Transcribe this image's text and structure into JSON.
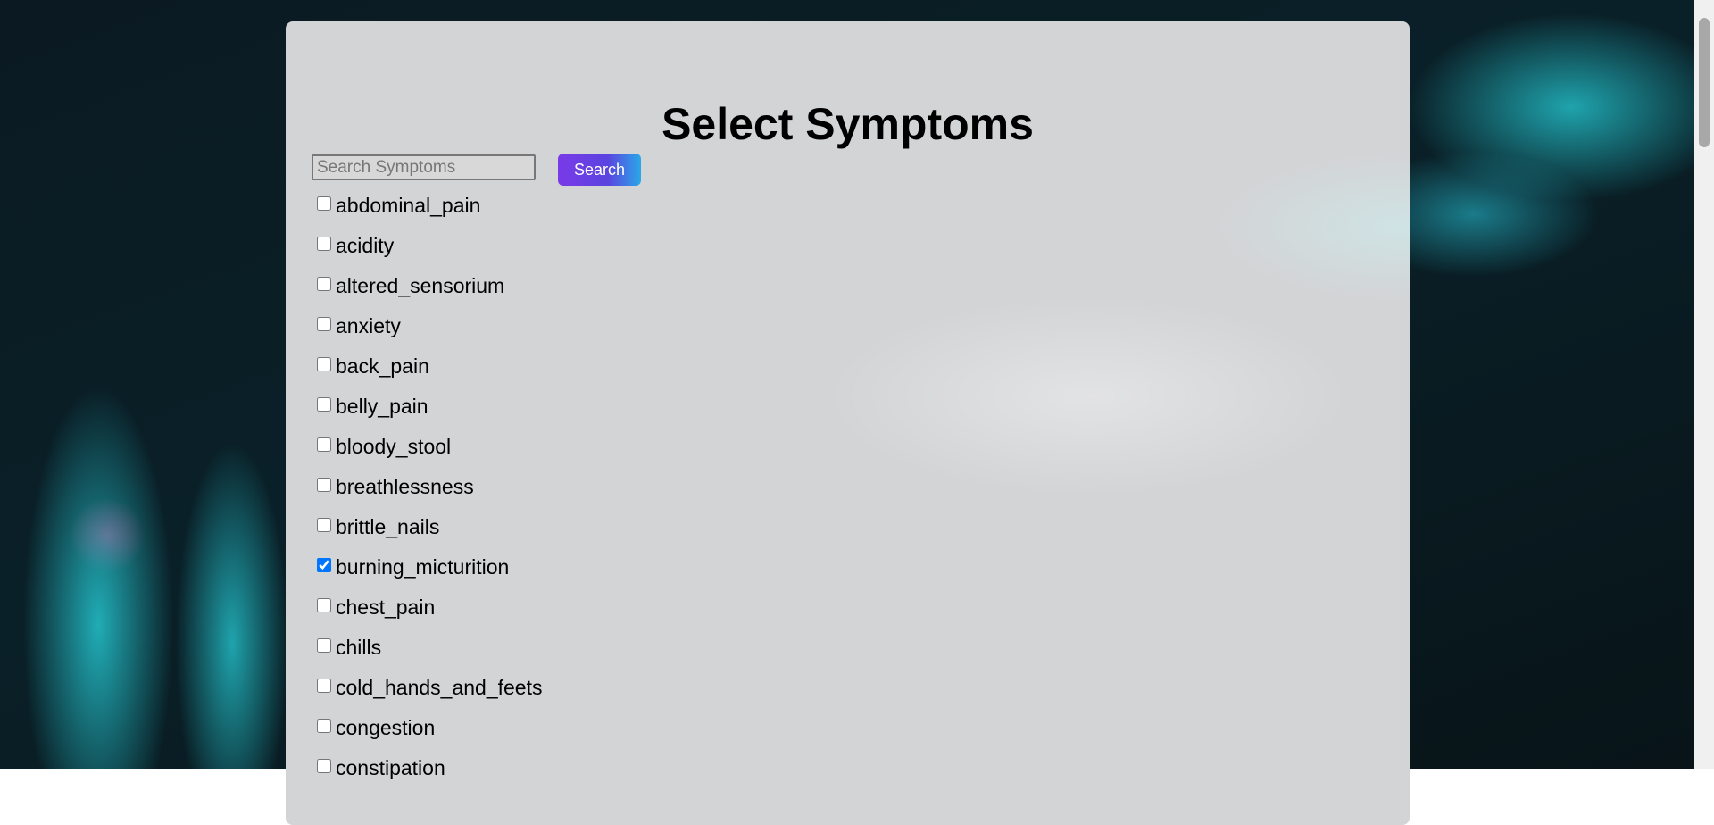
{
  "header": {
    "title": "Select Symptoms"
  },
  "search": {
    "placeholder": "Search Symptoms",
    "button": "Search"
  },
  "symptoms": [
    {
      "label": "abdominal_pain",
      "checked": false
    },
    {
      "label": "acidity",
      "checked": false
    },
    {
      "label": "altered_sensorium",
      "checked": false
    },
    {
      "label": "anxiety",
      "checked": false
    },
    {
      "label": "back_pain",
      "checked": false
    },
    {
      "label": "belly_pain",
      "checked": false
    },
    {
      "label": "bloody_stool",
      "checked": false
    },
    {
      "label": "breathlessness",
      "checked": false
    },
    {
      "label": "brittle_nails",
      "checked": false
    },
    {
      "label": "burning_micturition",
      "checked": true
    },
    {
      "label": "chest_pain",
      "checked": false
    },
    {
      "label": "chills",
      "checked": false
    },
    {
      "label": "cold_hands_and_feets",
      "checked": false
    },
    {
      "label": "congestion",
      "checked": false
    },
    {
      "label": "constipation",
      "checked": false
    }
  ]
}
